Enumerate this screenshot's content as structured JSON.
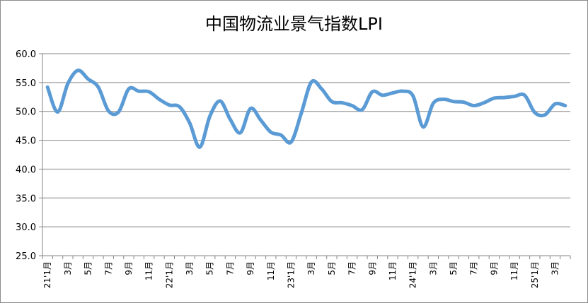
{
  "chart_data": {
    "type": "line",
    "title": "中国物流业景气指数LPI",
    "xlabel": "",
    "ylabel": "",
    "ylim": [
      25.0,
      60.0
    ],
    "yticks": [
      "25.0",
      "30.0",
      "35.0",
      "40.0",
      "45.0",
      "50.0",
      "55.0",
      "60.0"
    ],
    "grid": true,
    "legend": "none",
    "line_color": "#5b9bd5",
    "categories": [
      "21'1月",
      "2月",
      "3月",
      "4月",
      "5月",
      "6月",
      "7月",
      "8月",
      "9月",
      "10月",
      "11月",
      "12月",
      "22'1月",
      "2月",
      "3月",
      "4月",
      "5月",
      "6月",
      "7月",
      "8月",
      "9月",
      "10月",
      "11月",
      "12月",
      "23'1月",
      "2月",
      "3月",
      "4月",
      "5月",
      "6月",
      "7月",
      "8月",
      "9月",
      "10月",
      "11月",
      "12月",
      "24'1月",
      "2月",
      "3月",
      "4月",
      "5月",
      "6月",
      "7月",
      "8月",
      "9月",
      "10月",
      "11月",
      "12月",
      "25'1月",
      "2月",
      "3月",
      "4月"
    ],
    "x_tick_labels": [
      "21'1月",
      "3月",
      "5月",
      "7月",
      "9月",
      "11月",
      "22'1月",
      "3月",
      "5月",
      "7月",
      "9月",
      "11月",
      "23'1月",
      "3月",
      "5月",
      "7月",
      "9月",
      "11月",
      "24'1月",
      "3月",
      "5月",
      "7月",
      "9月",
      "11月",
      "25'1月",
      "3月"
    ],
    "values": [
      54.2,
      49.9,
      54.8,
      57.1,
      55.6,
      54.2,
      50.1,
      49.9,
      53.9,
      53.5,
      53.4,
      52.1,
      51.1,
      50.8,
      48.0,
      43.8,
      49.2,
      51.8,
      48.6,
      46.3,
      50.5,
      48.5,
      46.4,
      45.9,
      44.7,
      49.7,
      55.1,
      53.9,
      51.7,
      51.5,
      51.0,
      50.3,
      53.4,
      52.8,
      53.2,
      53.5,
      52.7,
      47.3,
      51.4,
      52.1,
      51.7,
      51.6,
      51.0,
      51.5,
      52.3,
      52.4,
      52.6,
      52.8,
      49.8,
      49.4,
      51.3,
      51.0
    ]
  }
}
